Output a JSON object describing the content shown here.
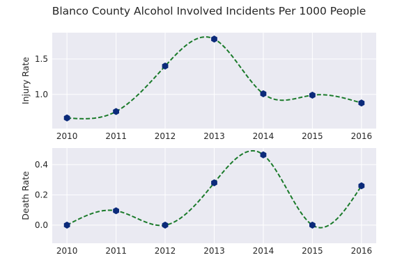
{
  "chart_data": {
    "title": "Blanco County Alcohol Involved Incidents Per 1000 People",
    "line_color": "#1a7a2a",
    "marker_color": "#0b2a7a",
    "background_color": "#eaeaf2",
    "panels": [
      {
        "type": "line",
        "style": "dashed smooth curve with hexagon markers",
        "ylabel": "Injury Rate",
        "x": [
          2010,
          2011,
          2012,
          2013,
          2014,
          2015,
          2016
        ],
        "x_tick_labels": [
          "2010",
          "2011",
          "2012",
          "2013",
          "2014",
          "2015",
          "2016"
        ],
        "y": [
          0.67,
          0.76,
          1.4,
          1.78,
          1.01,
          0.99,
          0.88
        ],
        "y_ticks": [
          1.0,
          1.5
        ],
        "y_tick_labels": [
          "1.0",
          "1.5"
        ],
        "xlim": [
          2009.7,
          2016.3
        ],
        "ylim": [
          0.52,
          1.87
        ],
        "grid": true
      },
      {
        "type": "line",
        "style": "dashed smooth curve with hexagon markers",
        "ylabel": "Death Rate",
        "x": [
          2010,
          2011,
          2012,
          2013,
          2014,
          2015,
          2016
        ],
        "x_tick_labels": [
          "2010",
          "2011",
          "2012",
          "2013",
          "2014",
          "2015",
          "2016"
        ],
        "y": [
          0.0,
          0.095,
          0.0,
          0.28,
          0.465,
          0.0,
          0.26
        ],
        "y_ticks": [
          0.0,
          0.2,
          0.4
        ],
        "y_tick_labels": [
          "0.0",
          "0.2",
          "0.4"
        ],
        "xlim": [
          2009.7,
          2016.3
        ],
        "ylim": [
          -0.12,
          0.51
        ],
        "grid": true
      }
    ]
  }
}
